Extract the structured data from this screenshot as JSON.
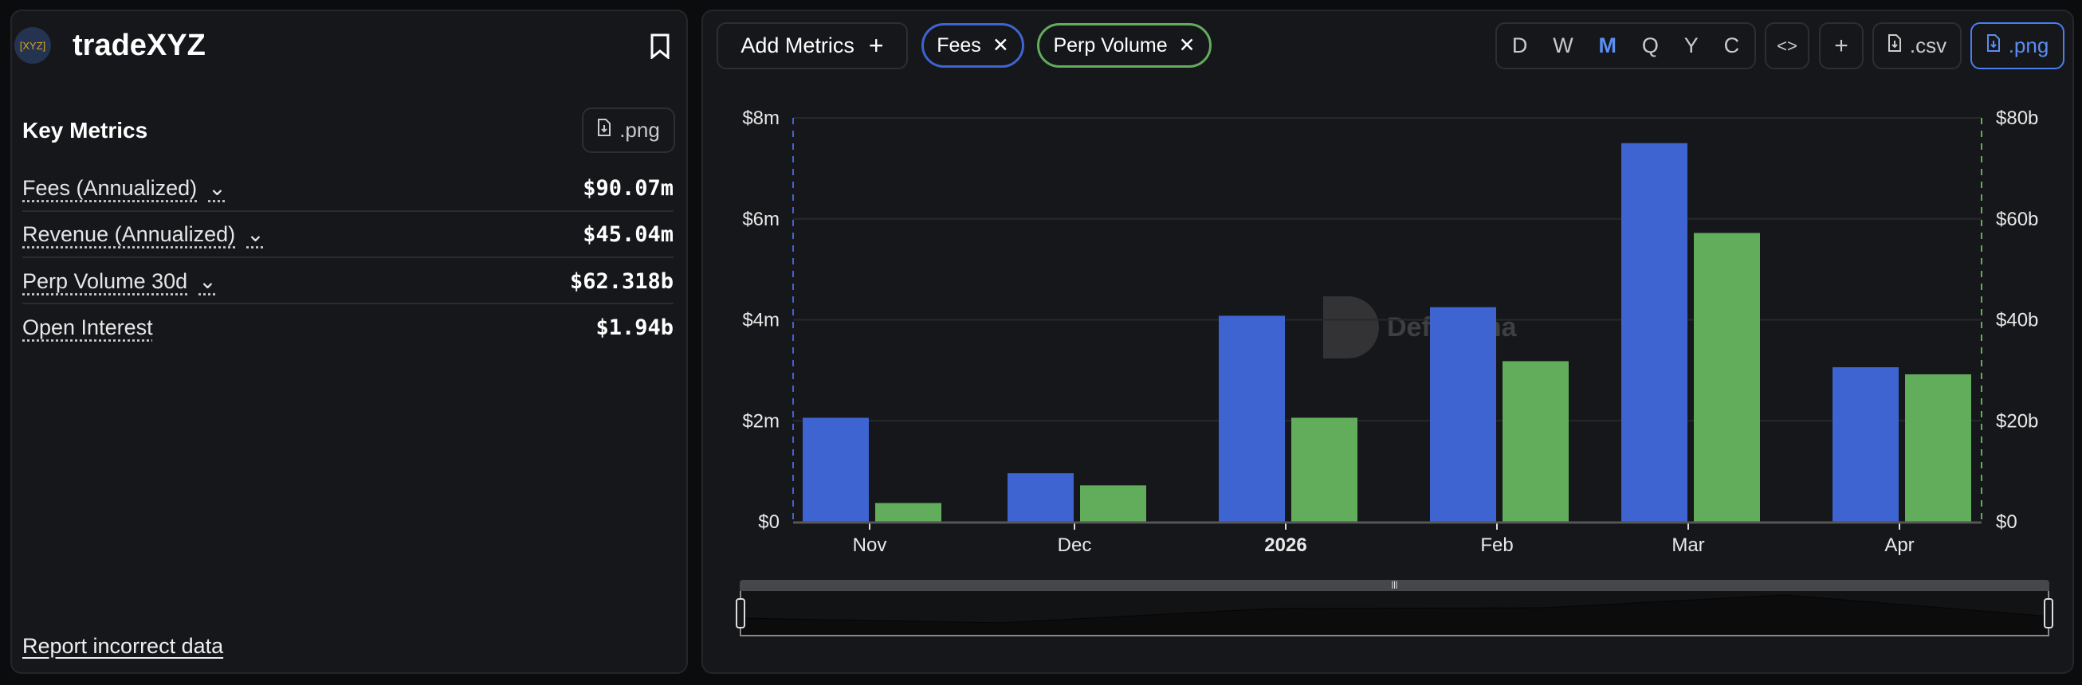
{
  "left": {
    "logo_text": "[XYZ]",
    "title": "tradeXYZ",
    "section_title": "Key Metrics",
    "png_label": ".png",
    "metrics": [
      {
        "label": "Fees (Annualized)",
        "value": "$90.07m",
        "dropdown": true
      },
      {
        "label": "Revenue (Annualized)",
        "value": "$45.04m",
        "dropdown": true
      },
      {
        "label": "Perp Volume 30d",
        "value": "$62.318b",
        "dropdown": true
      },
      {
        "label": "Open Interest",
        "value": "$1.94b",
        "dropdown": false
      }
    ],
    "report_link": "Report incorrect data"
  },
  "toolbar": {
    "add_metrics": "Add Metrics",
    "chips": [
      {
        "label": "Fees",
        "color": "#3d64d0"
      },
      {
        "label": "Perp Volume",
        "color": "#62ad5b"
      }
    ],
    "periods": [
      "D",
      "W",
      "M",
      "Q",
      "Y",
      "C"
    ],
    "active_period": "M",
    "embed": "<>",
    "plus": "+",
    "csv": ".csv",
    "png": ".png"
  },
  "watermark": "DefiLlama",
  "chart_data": {
    "type": "bar",
    "categories": [
      "Nov",
      "Dec",
      "2026",
      "Feb",
      "Mar",
      "Apr"
    ],
    "series": [
      {
        "name": "Fees",
        "axis": "left",
        "color": "#3d64d0",
        "values": [
          2.06,
          0.96,
          4.08,
          4.25,
          7.5,
          3.06
        ]
      },
      {
        "name": "Perp Volume",
        "axis": "right",
        "color": "#62ad5b",
        "values": [
          3.7,
          7.2,
          20.6,
          31.8,
          57.2,
          29.2
        ]
      }
    ],
    "left_axis": {
      "ticks": [
        "$0",
        "$2m",
        "$4m",
        "$6m",
        "$8m"
      ],
      "range": [
        0,
        8
      ],
      "unit": "m"
    },
    "right_axis": {
      "ticks": [
        "$0",
        "$20b",
        "$40b",
        "$60b",
        "$80b"
      ],
      "range": [
        0,
        80
      ],
      "unit": "b"
    },
    "grid": true
  }
}
